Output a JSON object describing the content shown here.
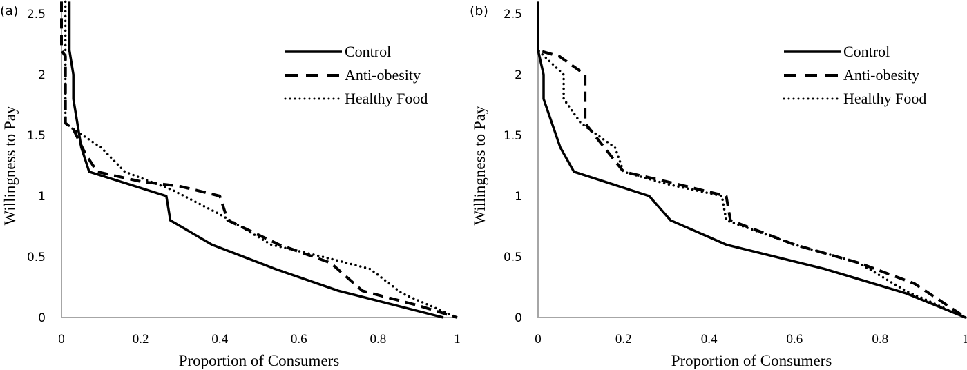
{
  "chart_data": [
    {
      "type": "line",
      "panel_label": "(a)",
      "title": "",
      "xlabel": "Proportion of Consumers",
      "ylabel": "Willingness to Pay",
      "xlim": [
        0,
        1
      ],
      "ylim": [
        0,
        2.6
      ],
      "x_ticks": [
        "0",
        "0.2",
        "0.4",
        "0.6",
        "0.8",
        "1"
      ],
      "y_ticks": [
        "0",
        "0.5",
        "1",
        "1.5",
        "2",
        "2.5"
      ],
      "grid": false,
      "legend_position": "top-right",
      "series": [
        {
          "name": "Control",
          "style": "solid",
          "points": [
            [
              0.02,
              2.6
            ],
            [
              0.02,
              2.2
            ],
            [
              0.03,
              2.0
            ],
            [
              0.03,
              1.8
            ],
            [
              0.05,
              1.4
            ],
            [
              0.07,
              1.2
            ],
            [
              0.265,
              1.0
            ],
            [
              0.275,
              0.8
            ],
            [
              0.38,
              0.6
            ],
            [
              0.54,
              0.4
            ],
            [
              0.7,
              0.22
            ],
            [
              0.965,
              0.0
            ]
          ]
        },
        {
          "name": "Anti-obesity",
          "style": "dashed",
          "points": [
            [
              0.0,
              2.6
            ],
            [
              0.0,
              2.2
            ],
            [
              0.01,
              2.15
            ],
            [
              0.01,
              1.6
            ],
            [
              0.03,
              1.55
            ],
            [
              0.06,
              1.35
            ],
            [
              0.09,
              1.2
            ],
            [
              0.2,
              1.12
            ],
            [
              0.3,
              1.08
            ],
            [
              0.4,
              1.0
            ],
            [
              0.42,
              0.8
            ],
            [
              0.55,
              0.6
            ],
            [
              0.68,
              0.45
            ],
            [
              0.76,
              0.22
            ],
            [
              0.9,
              0.1
            ],
            [
              1.0,
              0.0
            ]
          ]
        },
        {
          "name": "Healthy Food",
          "style": "dotted",
          "points": [
            [
              0.01,
              2.6
            ],
            [
              0.01,
              2.2
            ],
            [
              0.01,
              1.8
            ],
            [
              0.01,
              1.6
            ],
            [
              0.03,
              1.55
            ],
            [
              0.1,
              1.4
            ],
            [
              0.16,
              1.2
            ],
            [
              0.28,
              1.05
            ],
            [
              0.4,
              0.85
            ],
            [
              0.53,
              0.6
            ],
            [
              0.66,
              0.5
            ],
            [
              0.78,
              0.4
            ],
            [
              0.86,
              0.2
            ],
            [
              1.0,
              0.0
            ]
          ]
        }
      ]
    },
    {
      "type": "line",
      "panel_label": "(b)",
      "title": "",
      "xlabel": "Proportion of Consumers",
      "ylabel": "Willingness to Pay",
      "xlim": [
        0,
        1
      ],
      "ylim": [
        0,
        2.6
      ],
      "x_ticks": [
        "0",
        "0.2",
        "0.4",
        "0.6",
        "0.8",
        "1"
      ],
      "y_ticks": [
        "0",
        "0.5",
        "1",
        "1.5",
        "2",
        "2.5"
      ],
      "grid": false,
      "legend_position": "top-right",
      "series": [
        {
          "name": "Control",
          "style": "solid",
          "points": [
            [
              0.0,
              2.6
            ],
            [
              0.0,
              2.2
            ],
            [
              0.013,
              2.0
            ],
            [
              0.013,
              1.8
            ],
            [
              0.052,
              1.4
            ],
            [
              0.084,
              1.2
            ],
            [
              0.26,
              1.0
            ],
            [
              0.31,
              0.8
            ],
            [
              0.44,
              0.6
            ],
            [
              0.67,
              0.4
            ],
            [
              0.86,
              0.2
            ],
            [
              1.0,
              0.0
            ]
          ]
        },
        {
          "name": "Anti-obesity",
          "style": "dashed",
          "points": [
            [
              0.0,
              2.3
            ],
            [
              0.0,
              2.2
            ],
            [
              0.05,
              2.15
            ],
            [
              0.11,
              2.0
            ],
            [
              0.11,
              1.6
            ],
            [
              0.2,
              1.2
            ],
            [
              0.3,
              1.12
            ],
            [
              0.44,
              1.0
            ],
            [
              0.45,
              0.8
            ],
            [
              0.6,
              0.6
            ],
            [
              0.75,
              0.45
            ],
            [
              0.88,
              0.28
            ],
            [
              1.0,
              0.0
            ]
          ]
        },
        {
          "name": "Healthy Food",
          "style": "dotted",
          "points": [
            [
              0.0,
              2.35
            ],
            [
              0.0,
              2.2
            ],
            [
              0.06,
              2.0
            ],
            [
              0.06,
              1.8
            ],
            [
              0.1,
              1.6
            ],
            [
              0.18,
              1.4
            ],
            [
              0.2,
              1.2
            ],
            [
              0.3,
              1.1
            ],
            [
              0.43,
              1.0
            ],
            [
              0.44,
              0.8
            ],
            [
              0.6,
              0.6
            ],
            [
              0.75,
              0.45
            ],
            [
              0.86,
              0.22
            ],
            [
              1.0,
              0.0
            ]
          ]
        }
      ]
    }
  ]
}
